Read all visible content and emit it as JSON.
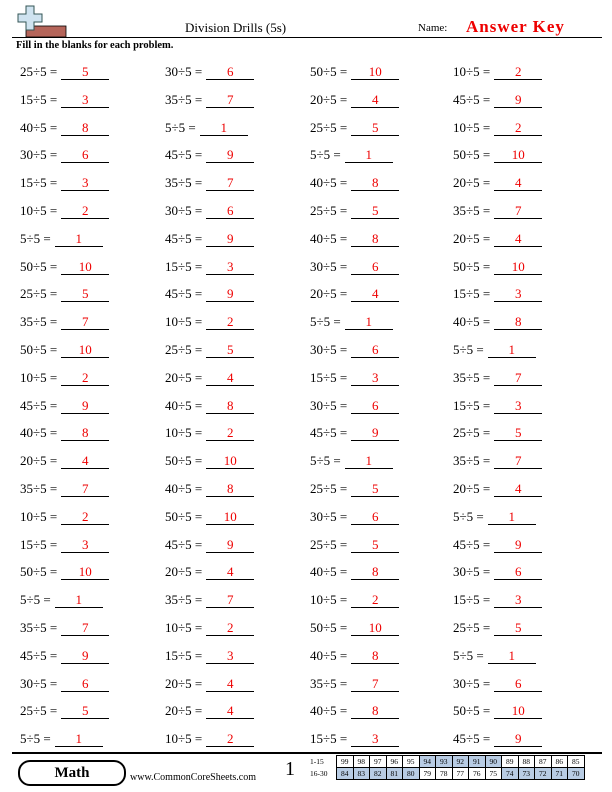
{
  "header": {
    "title": "Division Drills (5s)",
    "name_label": "Name:",
    "answer_key": "Answer Key",
    "instructions": "Fill in the blanks for each problem."
  },
  "problems": [
    [
      [
        "25÷5 =",
        "5"
      ],
      [
        "30÷5 =",
        "6"
      ],
      [
        "50÷5 =",
        "10"
      ],
      [
        "10÷5 =",
        "2"
      ]
    ],
    [
      [
        "15÷5 =",
        "3"
      ],
      [
        "35÷5 =",
        "7"
      ],
      [
        "20÷5 =",
        "4"
      ],
      [
        "45÷5 =",
        "9"
      ]
    ],
    [
      [
        "40÷5 =",
        "8"
      ],
      [
        "5÷5 =",
        "1"
      ],
      [
        "25÷5 =",
        "5"
      ],
      [
        "10÷5 =",
        "2"
      ]
    ],
    [
      [
        "30÷5 =",
        "6"
      ],
      [
        "45÷5 =",
        "9"
      ],
      [
        "5÷5 =",
        "1"
      ],
      [
        "50÷5 =",
        "10"
      ]
    ],
    [
      [
        "15÷5 =",
        "3"
      ],
      [
        "35÷5 =",
        "7"
      ],
      [
        "40÷5 =",
        "8"
      ],
      [
        "20÷5 =",
        "4"
      ]
    ],
    [
      [
        "10÷5 =",
        "2"
      ],
      [
        "30÷5 =",
        "6"
      ],
      [
        "25÷5 =",
        "5"
      ],
      [
        "35÷5 =",
        "7"
      ]
    ],
    [
      [
        "5÷5 =",
        "1"
      ],
      [
        "45÷5 =",
        "9"
      ],
      [
        "40÷5 =",
        "8"
      ],
      [
        "20÷5 =",
        "4"
      ]
    ],
    [
      [
        "50÷5 =",
        "10"
      ],
      [
        "15÷5 =",
        "3"
      ],
      [
        "30÷5 =",
        "6"
      ],
      [
        "50÷5 =",
        "10"
      ]
    ],
    [
      [
        "25÷5 =",
        "5"
      ],
      [
        "45÷5 =",
        "9"
      ],
      [
        "20÷5 =",
        "4"
      ],
      [
        "15÷5 =",
        "3"
      ]
    ],
    [
      [
        "35÷5 =",
        "7"
      ],
      [
        "10÷5 =",
        "2"
      ],
      [
        "5÷5 =",
        "1"
      ],
      [
        "40÷5 =",
        "8"
      ]
    ],
    [
      [
        "50÷5 =",
        "10"
      ],
      [
        "25÷5 =",
        "5"
      ],
      [
        "30÷5 =",
        "6"
      ],
      [
        "5÷5 =",
        "1"
      ]
    ],
    [
      [
        "10÷5 =",
        "2"
      ],
      [
        "20÷5 =",
        "4"
      ],
      [
        "15÷5 =",
        "3"
      ],
      [
        "35÷5 =",
        "7"
      ]
    ],
    [
      [
        "45÷5 =",
        "9"
      ],
      [
        "40÷5 =",
        "8"
      ],
      [
        "30÷5 =",
        "6"
      ],
      [
        "15÷5 =",
        "3"
      ]
    ],
    [
      [
        "40÷5 =",
        "8"
      ],
      [
        "10÷5 =",
        "2"
      ],
      [
        "45÷5 =",
        "9"
      ],
      [
        "25÷5 =",
        "5"
      ]
    ],
    [
      [
        "20÷5 =",
        "4"
      ],
      [
        "50÷5 =",
        "10"
      ],
      [
        "5÷5 =",
        "1"
      ],
      [
        "35÷5 =",
        "7"
      ]
    ],
    [
      [
        "35÷5 =",
        "7"
      ],
      [
        "40÷5 =",
        "8"
      ],
      [
        "25÷5 =",
        "5"
      ],
      [
        "20÷5 =",
        "4"
      ]
    ],
    [
      [
        "10÷5 =",
        "2"
      ],
      [
        "50÷5 =",
        "10"
      ],
      [
        "30÷5 =",
        "6"
      ],
      [
        "5÷5 =",
        "1"
      ]
    ],
    [
      [
        "15÷5 =",
        "3"
      ],
      [
        "45÷5 =",
        "9"
      ],
      [
        "25÷5 =",
        "5"
      ],
      [
        "45÷5 =",
        "9"
      ]
    ],
    [
      [
        "50÷5 =",
        "10"
      ],
      [
        "20÷5 =",
        "4"
      ],
      [
        "40÷5 =",
        "8"
      ],
      [
        "30÷5 =",
        "6"
      ]
    ],
    [
      [
        "5÷5 =",
        "1"
      ],
      [
        "35÷5 =",
        "7"
      ],
      [
        "10÷5 =",
        "2"
      ],
      [
        "15÷5 =",
        "3"
      ]
    ],
    [
      [
        "35÷5 =",
        "7"
      ],
      [
        "10÷5 =",
        "2"
      ],
      [
        "50÷5 =",
        "10"
      ],
      [
        "25÷5 =",
        "5"
      ]
    ],
    [
      [
        "45÷5 =",
        "9"
      ],
      [
        "15÷5 =",
        "3"
      ],
      [
        "40÷5 =",
        "8"
      ],
      [
        "5÷5 =",
        "1"
      ]
    ],
    [
      [
        "30÷5 =",
        "6"
      ],
      [
        "20÷5 =",
        "4"
      ],
      [
        "35÷5 =",
        "7"
      ],
      [
        "30÷5 =",
        "6"
      ]
    ],
    [
      [
        "25÷5 =",
        "5"
      ],
      [
        "20÷5 =",
        "4"
      ],
      [
        "40÷5 =",
        "8"
      ],
      [
        "50÷5 =",
        "10"
      ]
    ],
    [
      [
        "5÷5 =",
        "1"
      ],
      [
        "10÷5 =",
        "2"
      ],
      [
        "15÷5 =",
        "3"
      ],
      [
        "45÷5 =",
        "9"
      ]
    ]
  ],
  "footer": {
    "subject": "Math",
    "website": "www.CommonCoreSheets.com",
    "page": "1"
  },
  "score_table": [
    {
      "label": "1-15",
      "scores": [
        "99",
        "98",
        "97",
        "96",
        "95",
        "94",
        "93",
        "92",
        "91",
        "90",
        "89",
        "88",
        "87",
        "86",
        "85"
      ]
    },
    {
      "label": "16-30",
      "scores": [
        "84",
        "83",
        "82",
        "81",
        "80",
        "79",
        "78",
        "77",
        "76",
        "75",
        "74",
        "73",
        "72",
        "71",
        "70"
      ]
    }
  ]
}
